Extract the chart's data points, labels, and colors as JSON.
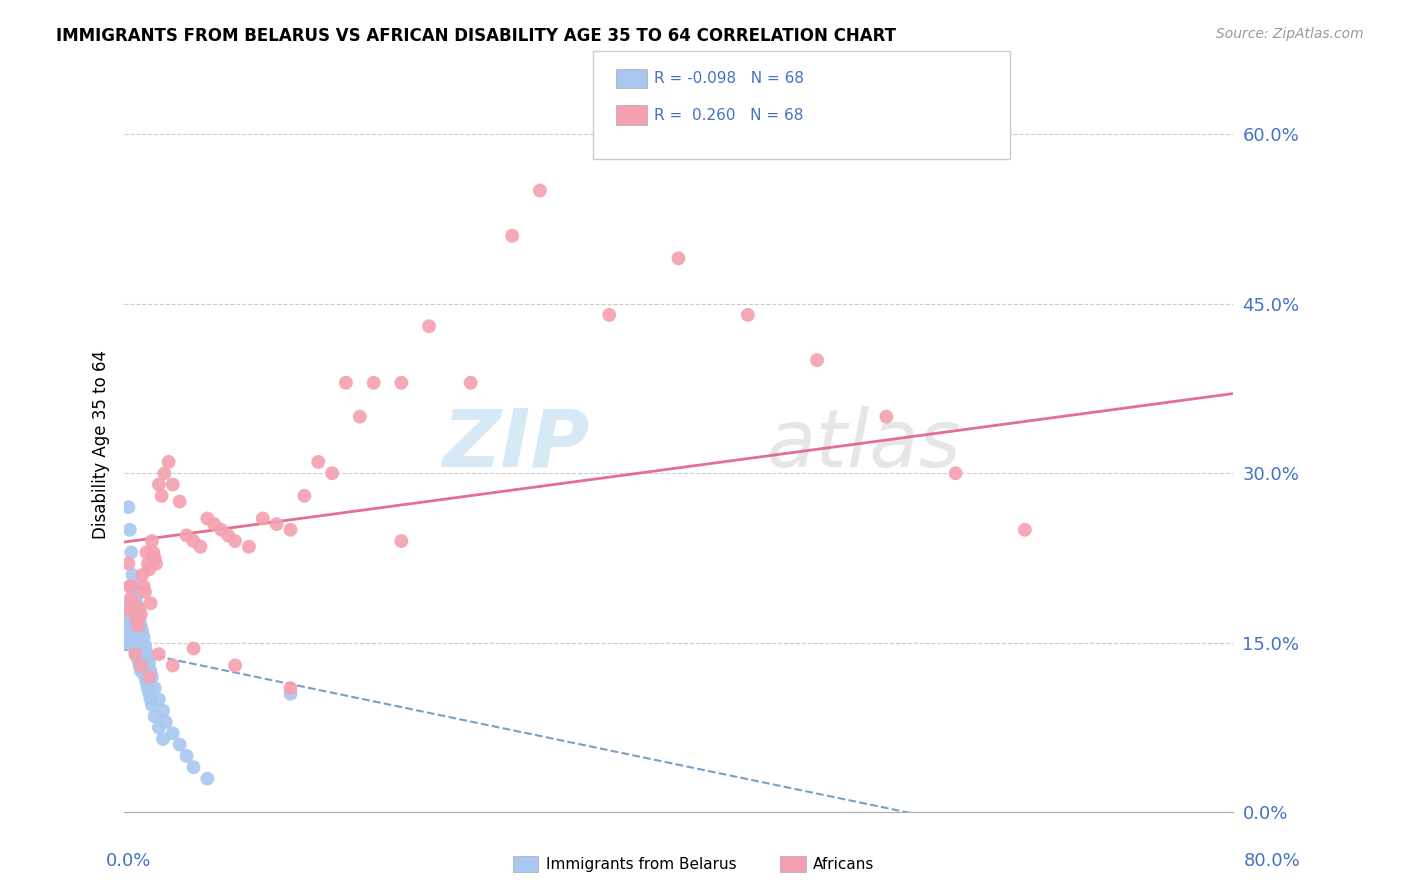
{
  "title": "IMMIGRANTS FROM BELARUS VS AFRICAN DISABILITY AGE 35 TO 64 CORRELATION CHART",
  "source": "Source: ZipAtlas.com",
  "ylabel": "Disability Age 35 to 64",
  "ytick_labels": [
    "0.0%",
    "15.0%",
    "30.0%",
    "45.0%",
    "60.0%"
  ],
  "ytick_values": [
    0.0,
    0.15,
    0.3,
    0.45,
    0.6
  ],
  "xlim": [
    0.0,
    0.8
  ],
  "ylim": [
    0.0,
    0.65
  ],
  "color_belarus": "#a8c8f0",
  "color_africans": "#f4a0b0",
  "trendline_belarus_color": "#5588bb",
  "trendline_africans_color": "#e06080",
  "watermark_zip": "ZIP",
  "watermark_atlas": "atlas",
  "belarus_x": [
    0.001,
    0.001,
    0.001,
    0.002,
    0.002,
    0.002,
    0.003,
    0.003,
    0.003,
    0.004,
    0.004,
    0.004,
    0.005,
    0.005,
    0.005,
    0.006,
    0.006,
    0.007,
    0.007,
    0.008,
    0.008,
    0.009,
    0.009,
    0.01,
    0.01,
    0.011,
    0.011,
    0.012,
    0.012,
    0.013,
    0.014,
    0.015,
    0.016,
    0.017,
    0.018,
    0.019,
    0.02,
    0.022,
    0.025,
    0.028,
    0.003,
    0.004,
    0.005,
    0.006,
    0.007,
    0.008,
    0.009,
    0.01,
    0.011,
    0.012,
    0.013,
    0.014,
    0.015,
    0.016,
    0.017,
    0.018,
    0.019,
    0.02,
    0.022,
    0.025,
    0.028,
    0.03,
    0.035,
    0.04,
    0.045,
    0.05,
    0.06,
    0.12
  ],
  "belarus_y": [
    0.175,
    0.165,
    0.155,
    0.185,
    0.17,
    0.16,
    0.18,
    0.17,
    0.155,
    0.175,
    0.165,
    0.15,
    0.17,
    0.16,
    0.148,
    0.165,
    0.155,
    0.16,
    0.15,
    0.155,
    0.145,
    0.15,
    0.14,
    0.145,
    0.135,
    0.14,
    0.13,
    0.135,
    0.125,
    0.13,
    0.125,
    0.12,
    0.115,
    0.11,
    0.105,
    0.1,
    0.095,
    0.085,
    0.075,
    0.065,
    0.27,
    0.25,
    0.23,
    0.21,
    0.2,
    0.19,
    0.185,
    0.175,
    0.17,
    0.165,
    0.16,
    0.155,
    0.148,
    0.142,
    0.137,
    0.132,
    0.125,
    0.12,
    0.11,
    0.1,
    0.09,
    0.08,
    0.07,
    0.06,
    0.05,
    0.04,
    0.03,
    0.105
  ],
  "africans_x": [
    0.002,
    0.003,
    0.004,
    0.005,
    0.006,
    0.007,
    0.008,
    0.009,
    0.01,
    0.011,
    0.012,
    0.013,
    0.014,
    0.015,
    0.016,
    0.017,
    0.018,
    0.019,
    0.02,
    0.021,
    0.022,
    0.023,
    0.025,
    0.027,
    0.029,
    0.032,
    0.035,
    0.04,
    0.045,
    0.05,
    0.055,
    0.06,
    0.065,
    0.07,
    0.075,
    0.08,
    0.09,
    0.1,
    0.11,
    0.12,
    0.13,
    0.14,
    0.15,
    0.16,
    0.17,
    0.18,
    0.2,
    0.22,
    0.25,
    0.28,
    0.3,
    0.35,
    0.4,
    0.45,
    0.5,
    0.55,
    0.6,
    0.65,
    0.005,
    0.008,
    0.012,
    0.018,
    0.025,
    0.035,
    0.05,
    0.08,
    0.12,
    0.2
  ],
  "africans_y": [
    0.18,
    0.22,
    0.2,
    0.19,
    0.185,
    0.18,
    0.175,
    0.17,
    0.165,
    0.18,
    0.175,
    0.21,
    0.2,
    0.195,
    0.23,
    0.22,
    0.215,
    0.185,
    0.24,
    0.23,
    0.225,
    0.22,
    0.29,
    0.28,
    0.3,
    0.31,
    0.29,
    0.275,
    0.245,
    0.24,
    0.235,
    0.26,
    0.255,
    0.25,
    0.245,
    0.24,
    0.235,
    0.26,
    0.255,
    0.25,
    0.28,
    0.31,
    0.3,
    0.38,
    0.35,
    0.38,
    0.38,
    0.43,
    0.38,
    0.51,
    0.55,
    0.44,
    0.49,
    0.44,
    0.4,
    0.35,
    0.3,
    0.25,
    0.2,
    0.14,
    0.13,
    0.12,
    0.14,
    0.13,
    0.145,
    0.13,
    0.11,
    0.24
  ]
}
